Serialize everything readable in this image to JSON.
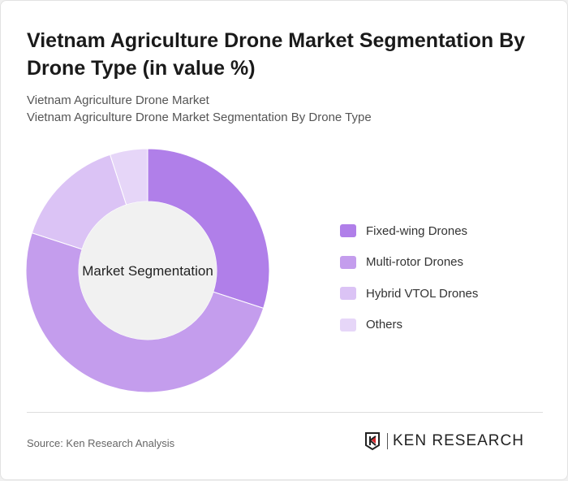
{
  "title": "Vietnam Agriculture Drone Market Segmentation By Drone Type (in value %)",
  "subtitle1": "Vietnam Agriculture Drone Market",
  "subtitle2": "Vietnam Agriculture Drone Market Segmentation By Drone Type",
  "source": "Source: Ken Research Analysis",
  "logo_text": "KEN RESEARCH",
  "chart_data": {
    "type": "pie",
    "donut": true,
    "center_label": "Market Segmentation",
    "categories": [
      "Fixed-wing Drones",
      "Multi-rotor Drones",
      "Hybrid VTOL Drones",
      "Others"
    ],
    "values": [
      30,
      50,
      15,
      5
    ],
    "colors": [
      "#b07fe9",
      "#c49ded",
      "#dbc3f5",
      "#e6d6f8"
    ],
    "legend_position": "right"
  }
}
